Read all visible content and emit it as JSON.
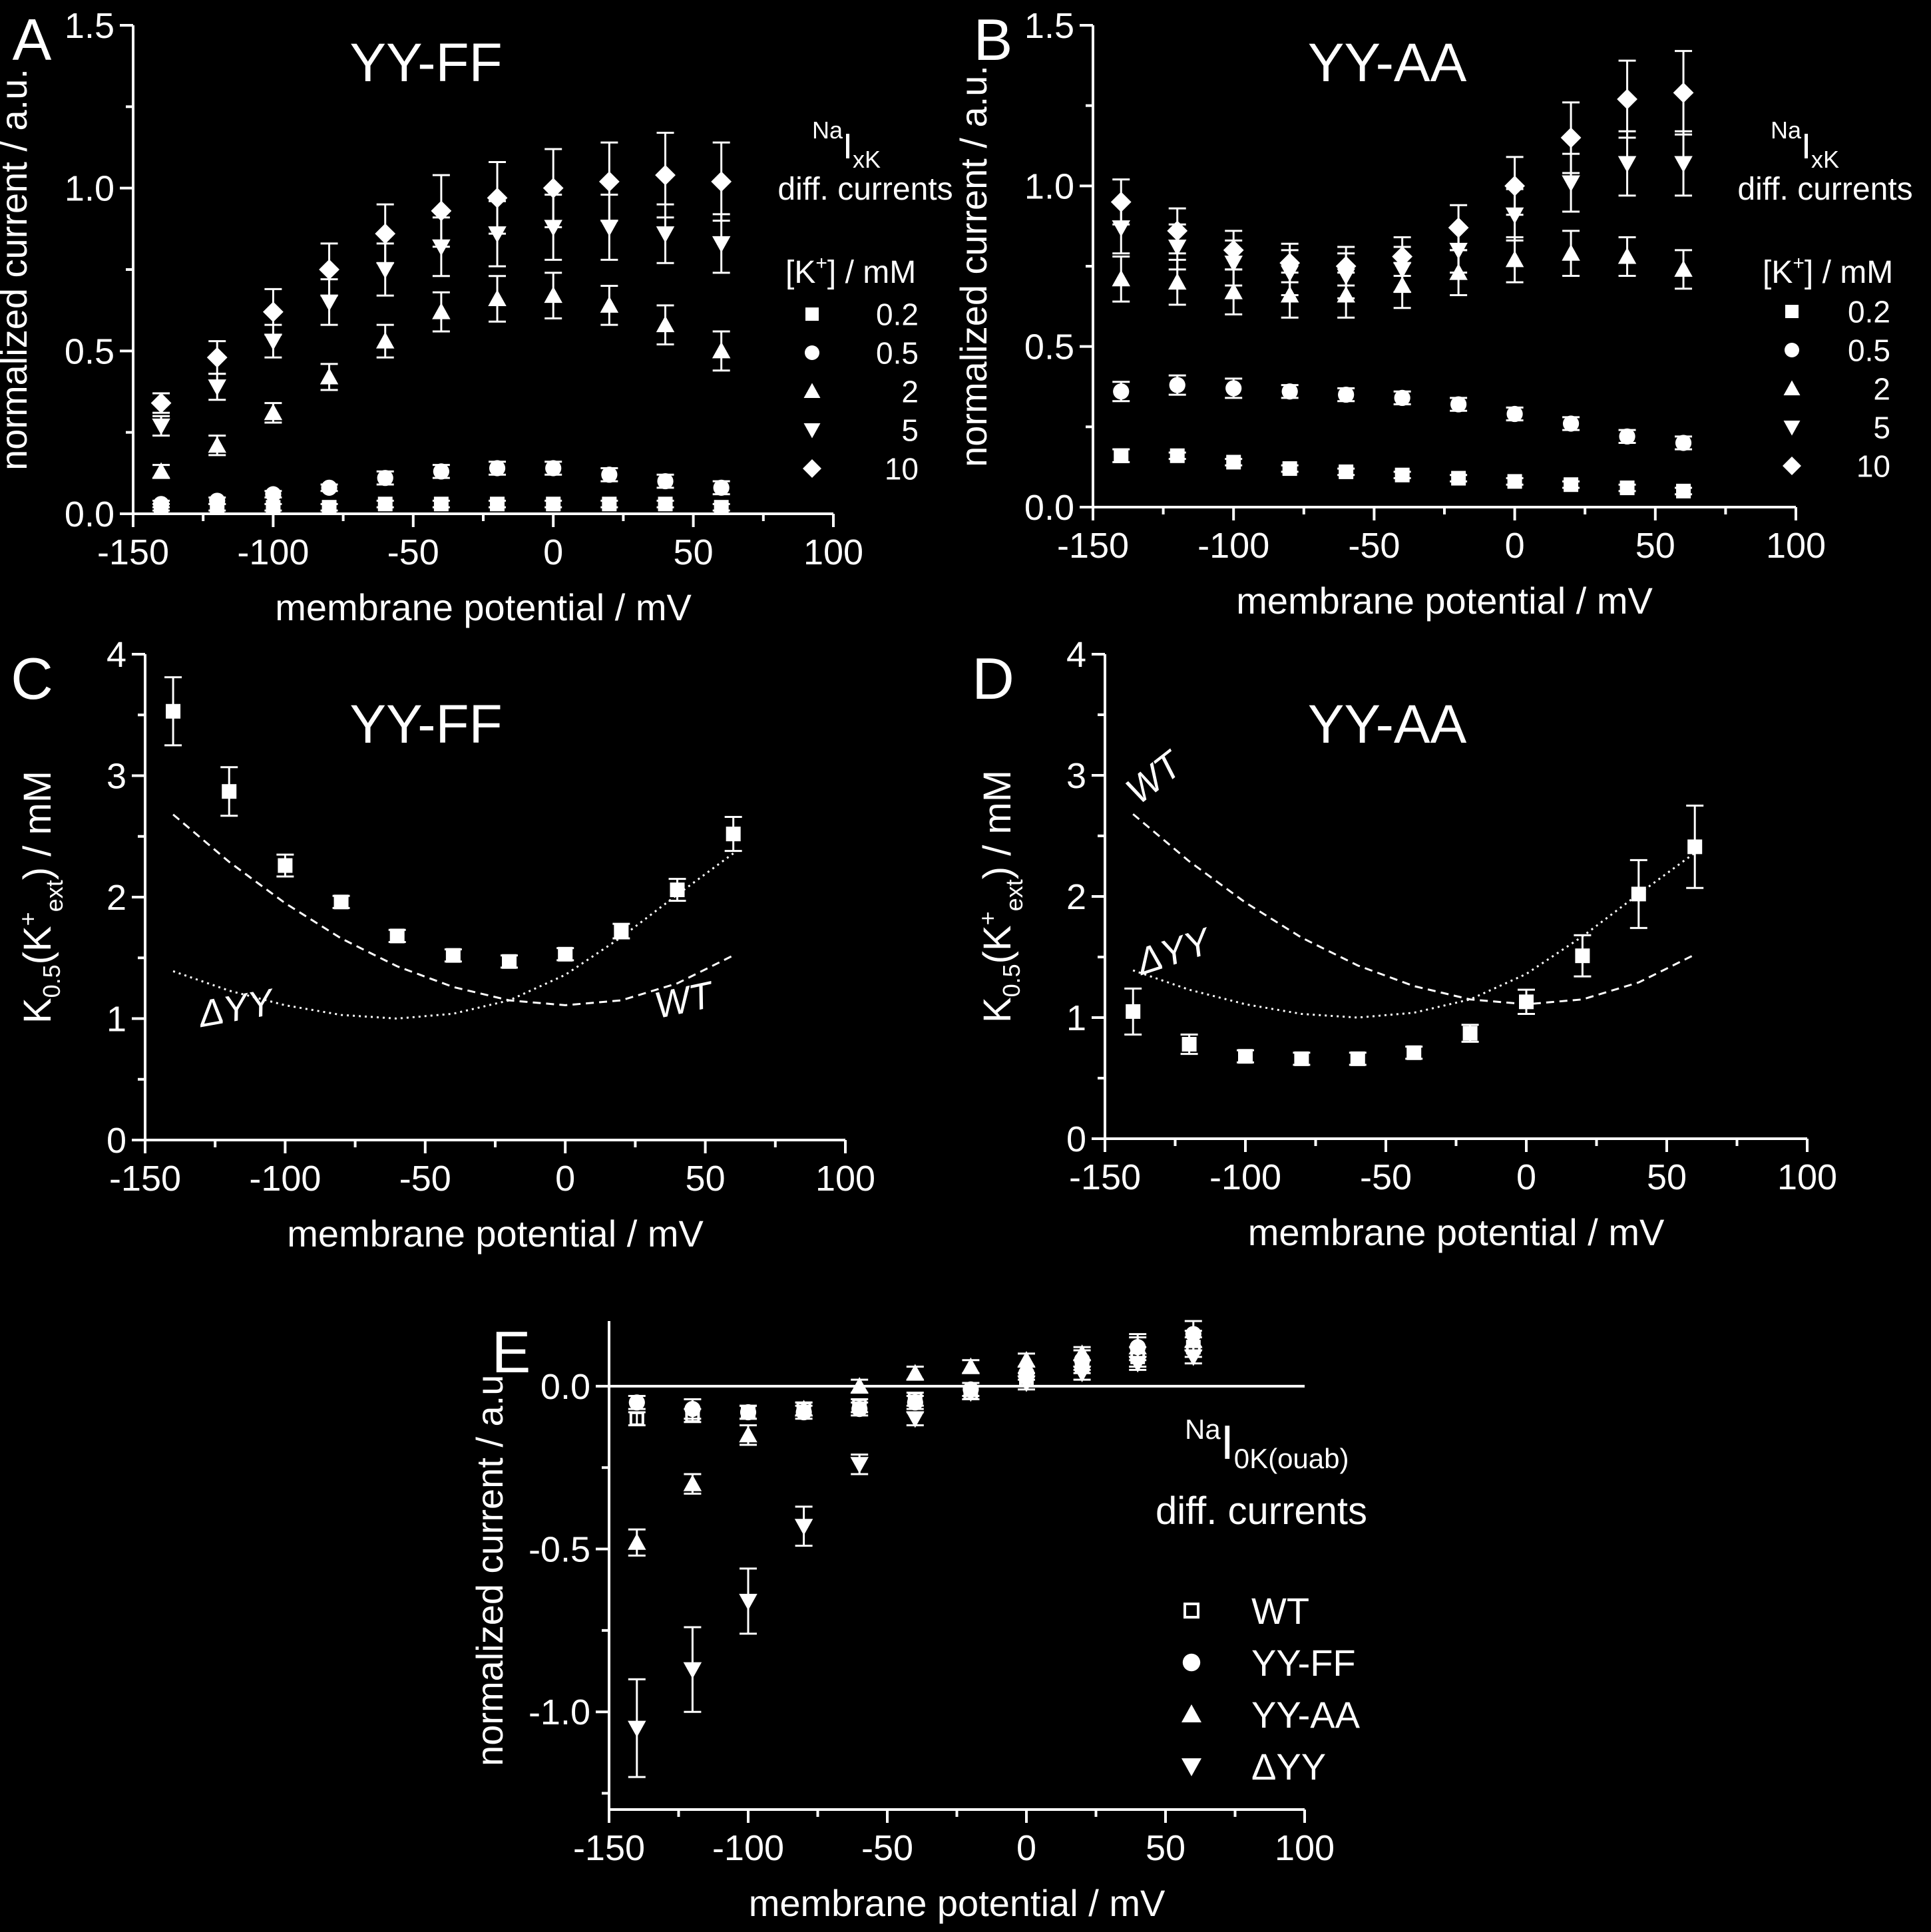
{
  "figure": {
    "background": "#000000",
    "foreground": "#ffffff"
  },
  "chart_data": [
    {
      "id": "A",
      "panel_label": "A",
      "type": "scatter",
      "title": "YY-FF",
      "xlabel": "membrane potential / mV",
      "ylabel": "normalized current / a.u.",
      "xlim": [
        -150,
        100
      ],
      "ylim": [
        0,
        1.5
      ],
      "xticks": [
        -150,
        -100,
        -50,
        0,
        50,
        100
      ],
      "yticks": [
        0.0,
        0.5,
        1.0,
        1.5
      ],
      "ytick_labels": [
        "0.0",
        "0.5",
        "1.0",
        "1.5"
      ],
      "legend_head": {
        "sup": "Na",
        "main": "I",
        "sub": "xK",
        "line2": "diff. currents"
      },
      "legend_title": {
        "pre": "[K",
        "sup": "+",
        "post": "] / mM"
      },
      "legend_position": "right",
      "x": [
        -140,
        -120,
        -100,
        -80,
        -60,
        -40,
        -20,
        0,
        20,
        40,
        60
      ],
      "series": [
        {
          "name": "0.2",
          "marker": "square",
          "values": [
            0.02,
            0.02,
            0.02,
            0.02,
            0.03,
            0.03,
            0.03,
            0.03,
            0.03,
            0.03,
            0.02
          ],
          "errors": [
            0.01,
            0.01,
            0.01,
            0.01,
            0.01,
            0.01,
            0.01,
            0.01,
            0.01,
            0.01,
            0.01
          ]
        },
        {
          "name": "0.5",
          "marker": "circle",
          "values": [
            0.03,
            0.04,
            0.06,
            0.08,
            0.11,
            0.13,
            0.14,
            0.14,
            0.12,
            0.1,
            0.08
          ],
          "errors": [
            0.01,
            0.01,
            0.01,
            0.01,
            0.02,
            0.02,
            0.02,
            0.02,
            0.02,
            0.02,
            0.02
          ]
        },
        {
          "name": "2",
          "marker": "triangle-up",
          "values": [
            0.13,
            0.21,
            0.31,
            0.42,
            0.53,
            0.62,
            0.66,
            0.67,
            0.64,
            0.58,
            0.5
          ],
          "errors": [
            0.02,
            0.03,
            0.03,
            0.04,
            0.05,
            0.06,
            0.07,
            0.07,
            0.06,
            0.06,
            0.06
          ]
        },
        {
          "name": "5",
          "marker": "triangle-down",
          "values": [
            0.27,
            0.39,
            0.53,
            0.65,
            0.75,
            0.82,
            0.86,
            0.88,
            0.88,
            0.86,
            0.83
          ],
          "errors": [
            0.03,
            0.04,
            0.05,
            0.07,
            0.08,
            0.09,
            0.1,
            0.1,
            0.1,
            0.09,
            0.09
          ]
        },
        {
          "name": "10",
          "marker": "diamond",
          "values": [
            0.34,
            0.48,
            0.62,
            0.75,
            0.86,
            0.93,
            0.97,
            1.0,
            1.02,
            1.04,
            1.02
          ],
          "errors": [
            0.03,
            0.05,
            0.07,
            0.08,
            0.09,
            0.11,
            0.11,
            0.12,
            0.12,
            0.13,
            0.12
          ]
        }
      ]
    },
    {
      "id": "B",
      "panel_label": "B",
      "type": "scatter",
      "title": "YY-AA",
      "xlabel": "membrane potential / mV",
      "ylabel": "normalized current / a.u.",
      "xlim": [
        -150,
        100
      ],
      "ylim": [
        0,
        1.5
      ],
      "xticks": [
        -150,
        -100,
        -50,
        0,
        50,
        100
      ],
      "yticks": [
        0.0,
        0.5,
        1.0,
        1.5
      ],
      "ytick_labels": [
        "0.0",
        "0.5",
        "1.0",
        "1.5"
      ],
      "legend_head": {
        "sup": "Na",
        "main": "I",
        "sub": "xK",
        "line2": "diff. currents"
      },
      "legend_title": {
        "pre": "[K",
        "sup": "+",
        "post": "] / mM"
      },
      "legend_position": "right",
      "x": [
        -140,
        -120,
        -100,
        -80,
        -60,
        -40,
        -20,
        0,
        20,
        40,
        60
      ],
      "series": [
        {
          "name": "0.2",
          "marker": "square",
          "values": [
            0.16,
            0.16,
            0.14,
            0.12,
            0.11,
            0.1,
            0.09,
            0.08,
            0.07,
            0.06,
            0.05
          ],
          "errors": [
            0.02,
            0.01,
            0.01,
            0.01,
            0.01,
            0.01,
            0.01,
            0.01,
            0.01,
            0.01,
            0.01
          ]
        },
        {
          "name": "0.5",
          "marker": "circle",
          "values": [
            0.36,
            0.38,
            0.37,
            0.36,
            0.35,
            0.34,
            0.32,
            0.29,
            0.26,
            0.22,
            0.2
          ],
          "errors": [
            0.03,
            0.03,
            0.03,
            0.02,
            0.02,
            0.02,
            0.02,
            0.02,
            0.02,
            0.02,
            0.02
          ]
        },
        {
          "name": "2",
          "marker": "triangle-up",
          "values": [
            0.71,
            0.7,
            0.67,
            0.66,
            0.66,
            0.69,
            0.73,
            0.77,
            0.79,
            0.78,
            0.74
          ],
          "errors": [
            0.07,
            0.07,
            0.07,
            0.07,
            0.07,
            0.07,
            0.07,
            0.07,
            0.07,
            0.06,
            0.06
          ]
        },
        {
          "name": "5",
          "marker": "triangle-down",
          "values": [
            0.87,
            0.81,
            0.76,
            0.73,
            0.72,
            0.74,
            0.8,
            0.91,
            1.01,
            1.07,
            1.07
          ],
          "errors": [
            0.08,
            0.07,
            0.07,
            0.07,
            0.07,
            0.07,
            0.07,
            0.08,
            0.09,
            0.1,
            0.1
          ]
        },
        {
          "name": "10",
          "marker": "diamond",
          "values": [
            0.95,
            0.86,
            0.8,
            0.76,
            0.75,
            0.78,
            0.87,
            1.0,
            1.15,
            1.27,
            1.29
          ],
          "errors": [
            0.07,
            0.07,
            0.06,
            0.06,
            0.06,
            0.06,
            0.07,
            0.09,
            0.11,
            0.12,
            0.13
          ]
        }
      ]
    },
    {
      "id": "C",
      "panel_label": "C",
      "type": "scatter",
      "title": "YY-FF",
      "xlabel": "membrane potential / mV",
      "ylabel": {
        "pre": "K",
        "sub1": "0.5",
        "mid": "(K",
        "sup": "+",
        "sub2": "ext",
        "post": ") / mM"
      },
      "xlim": [
        -150,
        100
      ],
      "ylim": [
        0,
        4
      ],
      "xticks": [
        -150,
        -100,
        -50,
        0,
        50,
        100
      ],
      "yticks": [
        0,
        1,
        2,
        3,
        4
      ],
      "ytick_labels": [
        "0",
        "1",
        "2",
        "3",
        "4"
      ],
      "x": [
        -140,
        -120,
        -100,
        -80,
        -60,
        -40,
        -20,
        0,
        20,
        40,
        60
      ],
      "series": [
        {
          "name": "",
          "marker": "square",
          "values": [
            3.53,
            2.87,
            2.26,
            1.96,
            1.68,
            1.52,
            1.47,
            1.53,
            1.72,
            2.06,
            2.52
          ],
          "errors": [
            0.28,
            0.2,
            0.09,
            0.05,
            0.05,
            0.05,
            0.05,
            0.05,
            0.06,
            0.09,
            0.14
          ]
        }
      ],
      "reference_curves": [
        {
          "name": "WT",
          "style": "dashed",
          "x": [
            -140,
            -120,
            -100,
            -80,
            -60,
            -40,
            -20,
            0,
            20,
            40,
            60
          ],
          "values": [
            2.68,
            2.29,
            1.95,
            1.66,
            1.43,
            1.26,
            1.15,
            1.11,
            1.15,
            1.29,
            1.52
          ]
        },
        {
          "name": "ΔYY",
          "style": "dotted",
          "x": [
            -140,
            -120,
            -100,
            -80,
            -60,
            -40,
            -20,
            0,
            20,
            40,
            60
          ],
          "values": [
            1.39,
            1.23,
            1.11,
            1.03,
            1.0,
            1.04,
            1.15,
            1.36,
            1.67,
            2.02,
            2.36
          ]
        }
      ],
      "curve_labels": [
        {
          "text": "ΔYY",
          "x": -130,
          "y": 0.93,
          "angle": -10
        },
        {
          "text": "WT",
          "x": 33,
          "y": 1.0,
          "angle": -12
        }
      ]
    },
    {
      "id": "D",
      "panel_label": "D",
      "type": "scatter",
      "title": "YY-AA",
      "xlabel": "membrane potential / mV",
      "ylabel": {
        "pre": "K",
        "sub1": "0.5",
        "mid": "(K",
        "sup": "+",
        "sub2": "ext",
        "post": ") / mM"
      },
      "xlim": [
        -150,
        100
      ],
      "ylim": [
        0,
        4
      ],
      "xticks": [
        -150,
        -100,
        -50,
        0,
        50,
        100
      ],
      "yticks": [
        0,
        1,
        2,
        3,
        4
      ],
      "ytick_labels": [
        "0",
        "1",
        "2",
        "3",
        "4"
      ],
      "x": [
        -140,
        -120,
        -100,
        -80,
        -60,
        -40,
        -20,
        0,
        20,
        40,
        60
      ],
      "series": [
        {
          "name": "",
          "marker": "square",
          "values": [
            1.05,
            0.78,
            0.68,
            0.66,
            0.66,
            0.71,
            0.87,
            1.13,
            1.51,
            2.02,
            2.41
          ],
          "errors": [
            0.19,
            0.08,
            0.05,
            0.05,
            0.05,
            0.05,
            0.07,
            0.1,
            0.17,
            0.28,
            0.34
          ]
        }
      ],
      "reference_curves": [
        {
          "name": "WT",
          "style": "dashed",
          "x": [
            -140,
            -120,
            -100,
            -80,
            -60,
            -40,
            -20,
            0,
            20,
            40,
            60
          ],
          "values": [
            2.68,
            2.29,
            1.95,
            1.66,
            1.43,
            1.26,
            1.15,
            1.11,
            1.15,
            1.29,
            1.52
          ]
        },
        {
          "name": "ΔYY",
          "style": "dotted",
          "x": [
            -140,
            -120,
            -100,
            -80,
            -60,
            -40,
            -20,
            0,
            20,
            40,
            60
          ],
          "values": [
            1.39,
            1.23,
            1.11,
            1.03,
            1.0,
            1.04,
            1.15,
            1.36,
            1.67,
            2.02,
            2.36
          ]
        }
      ],
      "curve_labels": [
        {
          "text": "WT",
          "x": -138,
          "y": 2.75,
          "angle": -38
        },
        {
          "text": "ΔYY",
          "x": -137,
          "y": 1.35,
          "angle": -18
        }
      ]
    },
    {
      "id": "E",
      "panel_label": "E",
      "type": "scatter",
      "title": "",
      "xlabel": "membrane potential / mV",
      "ylabel": "normalized current / a.u.",
      "xlim": [
        -150,
        100
      ],
      "ylim": [
        -1.3,
        0.2
      ],
      "xticks": [
        -150,
        -100,
        -50,
        0,
        50,
        100
      ],
      "yticks": [
        -1.0,
        -0.5,
        0.0
      ],
      "ytick_labels": [
        "-1.0",
        "-0.5",
        "0.0"
      ],
      "zero_line": true,
      "legend_head": {
        "sup": "Na",
        "main": "I",
        "sub": "0K(ouab)",
        "line2": "diff. currents"
      },
      "legend_position": "right",
      "x": [
        -140,
        -120,
        -100,
        -80,
        -60,
        -40,
        -20,
        0,
        20,
        40,
        60
      ],
      "series": [
        {
          "name": "WT",
          "marker": "square-open",
          "values": [
            -0.1,
            -0.09,
            -0.08,
            -0.07,
            -0.06,
            -0.04,
            -0.02,
            0.02,
            0.06,
            0.09,
            0.12
          ],
          "errors": [
            0.02,
            0.02,
            0.02,
            0.02,
            0.02,
            0.02,
            0.02,
            0.02,
            0.02,
            0.03,
            0.03
          ]
        },
        {
          "name": "YY-FF",
          "marker": "circle",
          "values": [
            -0.05,
            -0.07,
            -0.08,
            -0.08,
            -0.07,
            -0.05,
            -0.01,
            0.04,
            0.08,
            0.12,
            0.16
          ],
          "errors": [
            0.02,
            0.03,
            0.02,
            0.02,
            0.02,
            0.02,
            0.02,
            0.02,
            0.03,
            0.04,
            0.04
          ]
        },
        {
          "name": "YY-AA",
          "marker": "triangle-up",
          "values": [
            -0.48,
            -0.3,
            -0.15,
            -0.07,
            0.0,
            0.04,
            0.06,
            0.08,
            0.1,
            0.12,
            0.14
          ],
          "errors": [
            0.04,
            0.03,
            0.03,
            0.02,
            0.02,
            0.02,
            0.02,
            0.02,
            0.02,
            0.03,
            0.03
          ]
        },
        {
          "name": "ΔYY",
          "marker": "triangle-down",
          "values": [
            -1.05,
            -0.87,
            -0.66,
            -0.43,
            -0.24,
            -0.1,
            -0.02,
            0.01,
            0.04,
            0.07,
            0.09
          ],
          "errors": [
            0.15,
            0.13,
            0.1,
            0.06,
            0.03,
            0.02,
            0.02,
            0.02,
            0.02,
            0.02,
            0.02
          ]
        }
      ]
    }
  ]
}
